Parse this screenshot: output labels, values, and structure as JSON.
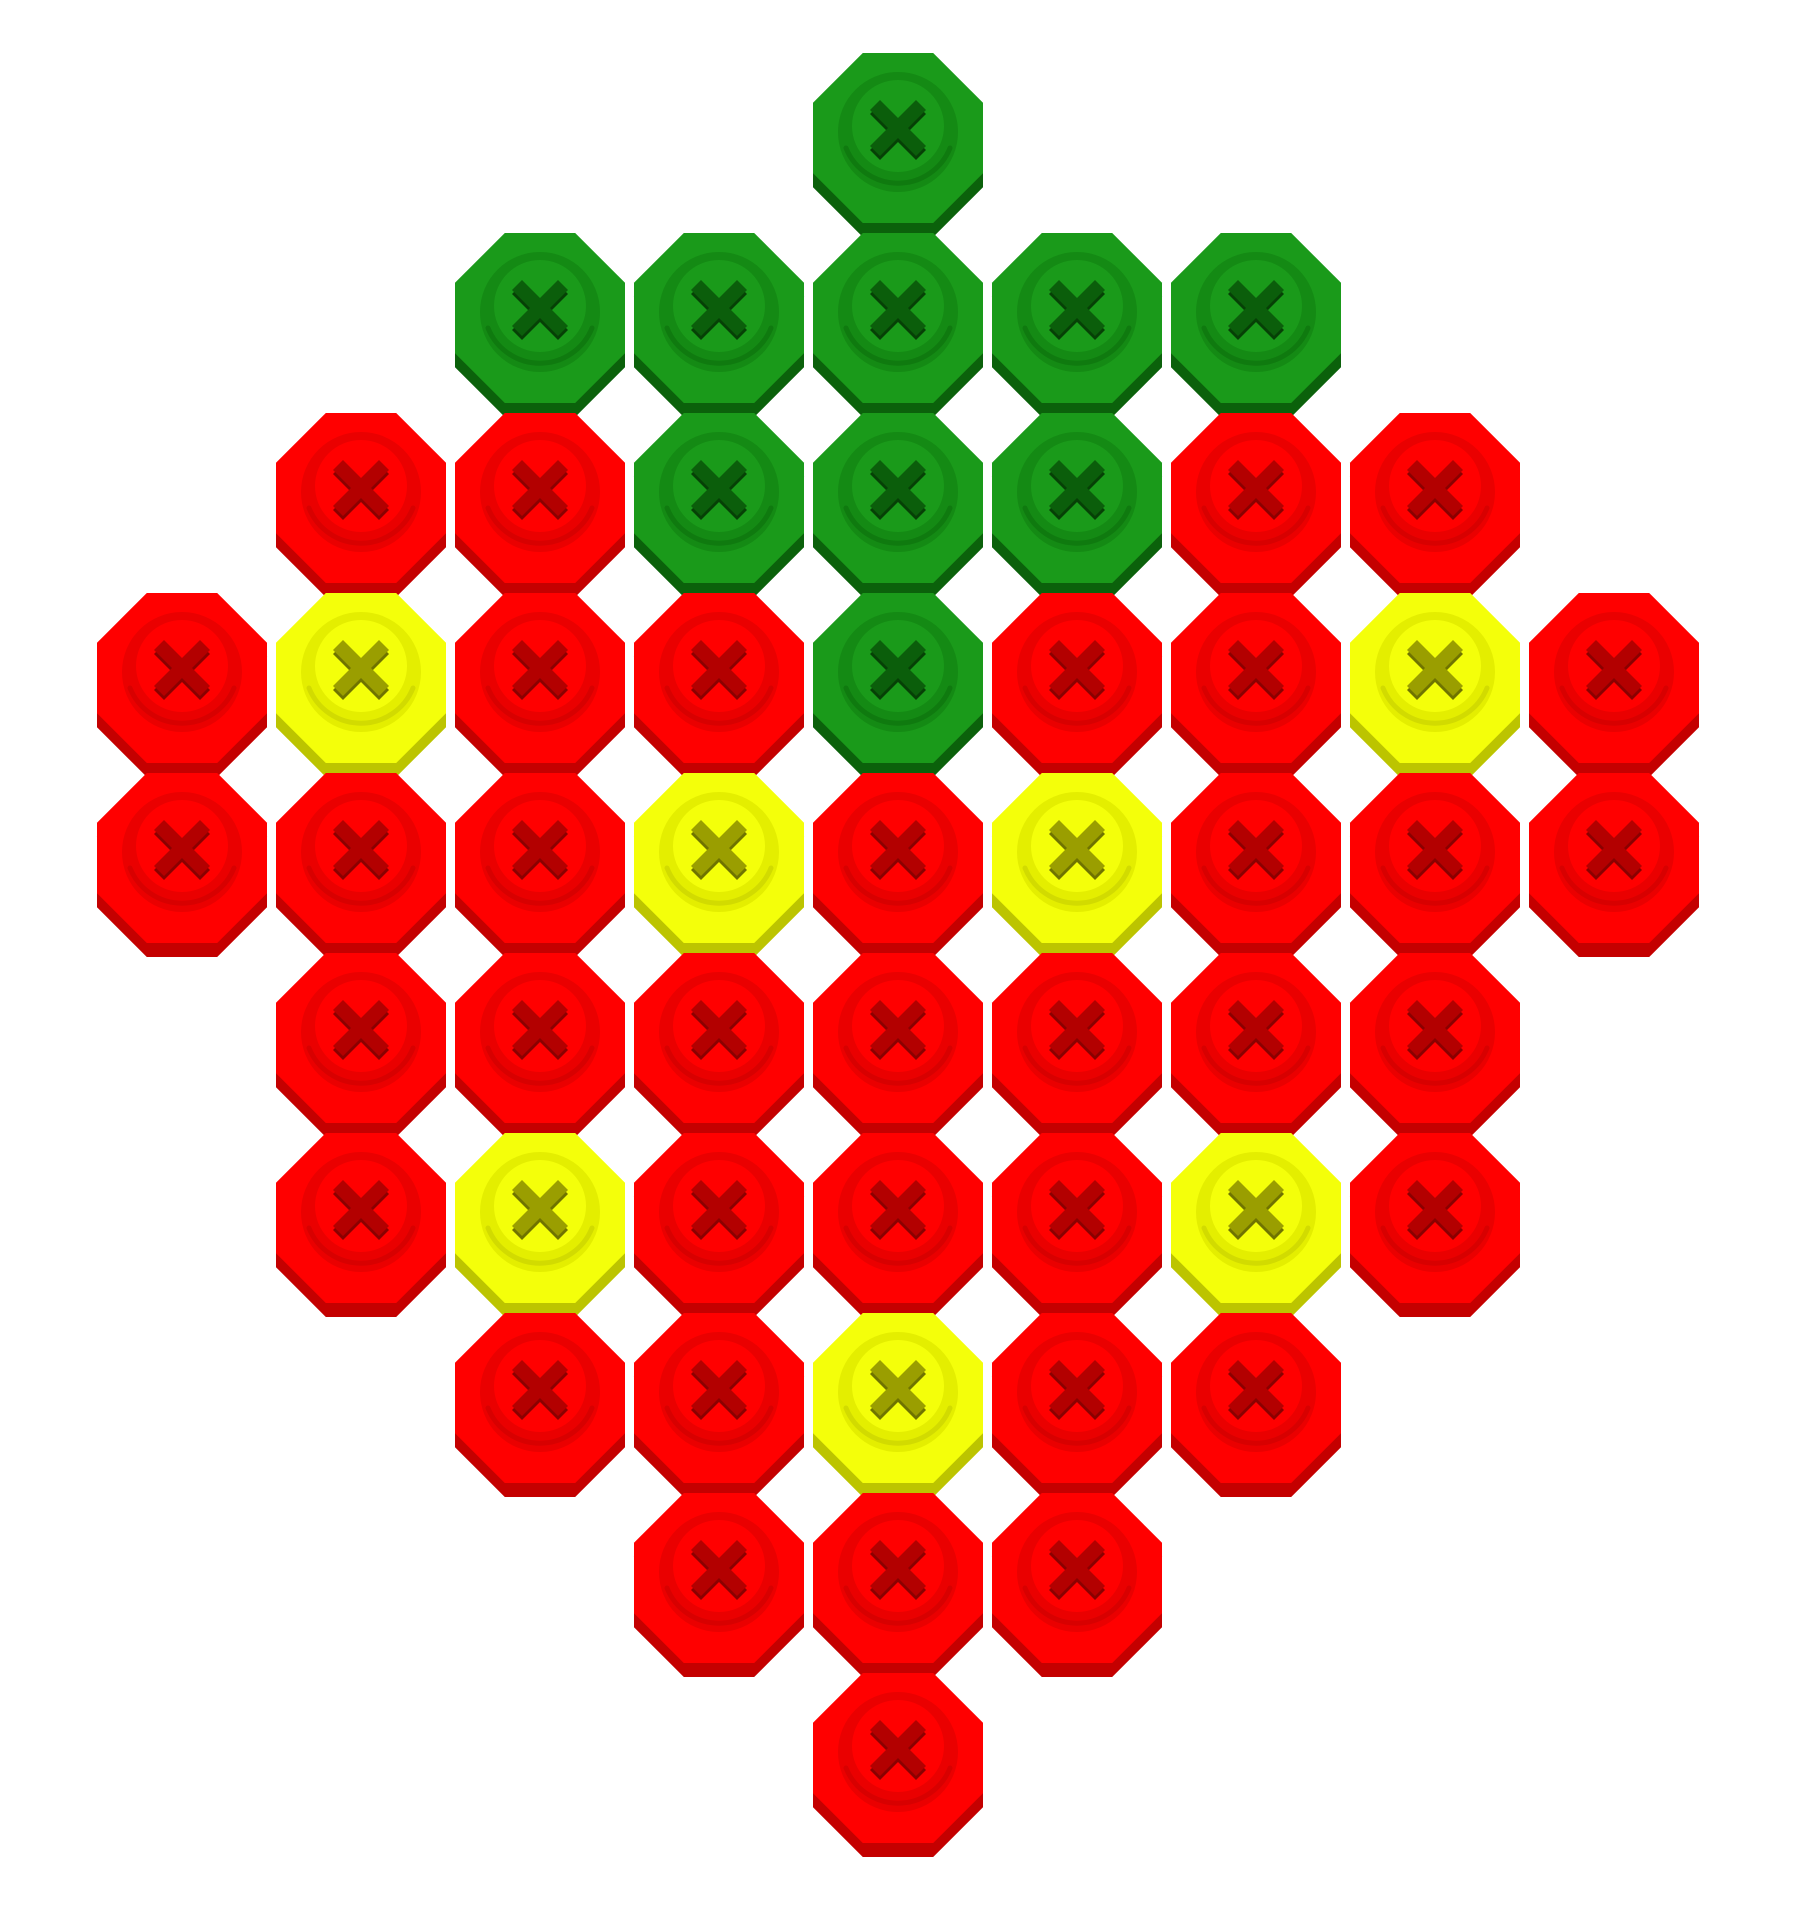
{
  "palette": {
    "red": {
      "top": "#ff0000",
      "side": "#c40000",
      "rim": "#ea0000",
      "ring": "#d80000",
      "cross": "#b30000",
      "crossShade": "#8a0000"
    },
    "green": {
      "top": "#1a9a1a",
      "side": "#0b610b",
      "rim": "#148a14",
      "ring": "#0f7a0f",
      "cross": "#0b5e0b",
      "crossShade": "#064006"
    },
    "yellow": {
      "top": "#f4ff0a",
      "side": "#bcc400",
      "rim": "#e4ee00",
      "ring": "#d2db00",
      "cross": "#9a9e00",
      "crossShade": "#6f7300"
    }
  },
  "icon": "phillips-screw-head-icon",
  "grid": {
    "rows": [
      [
        "_",
        "_",
        "_",
        "_",
        "G",
        "_",
        "_",
        "_",
        "_"
      ],
      [
        "_",
        "_",
        "G",
        "G",
        "G",
        "G",
        "G",
        "_",
        "_"
      ],
      [
        "_",
        "R",
        "R",
        "G",
        "G",
        "G",
        "R",
        "R",
        "_"
      ],
      [
        "R",
        "Y",
        "R",
        "R",
        "G",
        "R",
        "R",
        "Y",
        "R"
      ],
      [
        "R",
        "R",
        "R",
        "Y",
        "R",
        "Y",
        "R",
        "R",
        "R"
      ],
      [
        "_",
        "R",
        "R",
        "R",
        "R",
        "R",
        "R",
        "R",
        "_"
      ],
      [
        "_",
        "R",
        "Y",
        "R",
        "R",
        "R",
        "Y",
        "R",
        "_"
      ],
      [
        "_",
        "_",
        "R",
        "R",
        "Y",
        "R",
        "R",
        "_",
        "_"
      ],
      [
        "_",
        "_",
        "_",
        "R",
        "R",
        "R",
        "_",
        "_",
        "_"
      ],
      [
        "_",
        "_",
        "_",
        "_",
        "R",
        "_",
        "_",
        "_",
        "_"
      ]
    ],
    "legend": {
      "R": "red",
      "G": "green",
      "Y": "yellow",
      "_": "empty"
    }
  }
}
